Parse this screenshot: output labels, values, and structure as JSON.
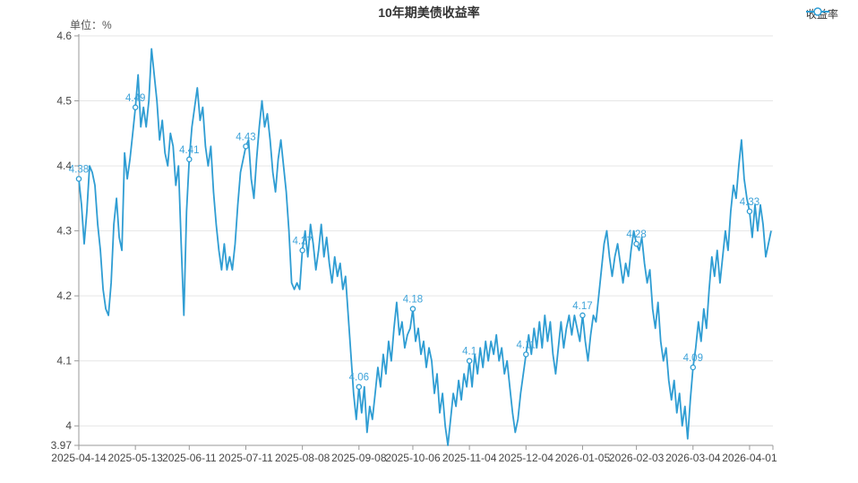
{
  "title": "10年期美债收益率",
  "unit_label": "单位：%",
  "legend": {
    "name": "收益率",
    "color": "#2f9dd3"
  },
  "colors": {
    "line": "#2f9dd3",
    "point_label": "#3fa3d9",
    "grid_line": "#e6e6e6",
    "axis_line": "#999999",
    "axis_text": "#464646",
    "background": "#ffffff"
  },
  "chart_data": {
    "type": "line",
    "title": "10年期美债收益率",
    "series_name": "收益率",
    "ylabel": "单位：%",
    "ylim": [
      3.97,
      4.6
    ],
    "grid": true,
    "legend_position": "top-right",
    "y_ticks": [
      3.97,
      4,
      4.1,
      4.2,
      4.3,
      4.4,
      4.5,
      4.6
    ],
    "y_tick_labels": [
      "3.97",
      "4",
      "4.1",
      "4.2",
      "4.3",
      "4.4",
      "4.5",
      "4.6"
    ],
    "x_tick_labels": [
      "2025-04-14",
      "2025-05-13",
      "2025-06-11",
      "2025-07-11",
      "2025-08-08",
      "2025-09-08",
      "2025-10-06",
      "2025-11-04",
      "2025-12-04",
      "2026-01-05",
      "2026-02-03",
      "2026-03-04",
      "2026-04-01"
    ],
    "x_tick_indices": [
      0,
      21,
      41,
      62,
      83,
      104,
      124,
      145,
      166,
      187,
      207,
      228,
      249
    ],
    "point_labels": [
      {
        "index": 0,
        "text": "4.38"
      },
      {
        "index": 21,
        "text": "4.49"
      },
      {
        "index": 41,
        "text": "4.41"
      },
      {
        "index": 62,
        "text": "4.43"
      },
      {
        "index": 83,
        "text": "4.27"
      },
      {
        "index": 104,
        "text": "4.06"
      },
      {
        "index": 124,
        "text": "4.18"
      },
      {
        "index": 145,
        "text": "4.1"
      },
      {
        "index": 166,
        "text": "4.11"
      },
      {
        "index": 187,
        "text": "4.17"
      },
      {
        "index": 207,
        "text": "4.28"
      },
      {
        "index": 228,
        "text": "4.09"
      },
      {
        "index": 249,
        "text": "4.33"
      }
    ],
    "values": [
      4.38,
      4.34,
      4.28,
      4.33,
      4.4,
      4.39,
      4.37,
      4.31,
      4.27,
      4.21,
      4.18,
      4.17,
      4.22,
      4.31,
      4.35,
      4.29,
      4.27,
      4.42,
      4.38,
      4.41,
      4.45,
      4.49,
      4.54,
      4.46,
      4.49,
      4.46,
      4.5,
      4.58,
      4.54,
      4.5,
      4.44,
      4.47,
      4.42,
      4.4,
      4.45,
      4.43,
      4.37,
      4.4,
      4.28,
      4.17,
      4.33,
      4.41,
      4.46,
      4.49,
      4.52,
      4.47,
      4.49,
      4.43,
      4.4,
      4.43,
      4.36,
      4.31,
      4.27,
      4.24,
      4.28,
      4.24,
      4.26,
      4.24,
      4.28,
      4.34,
      4.39,
      4.41,
      4.43,
      4.44,
      4.38,
      4.35,
      4.41,
      4.46,
      4.5,
      4.46,
      4.48,
      4.44,
      4.39,
      4.36,
      4.41,
      4.44,
      4.4,
      4.36,
      4.3,
      4.22,
      4.21,
      4.22,
      4.21,
      4.27,
      4.3,
      4.26,
      4.31,
      4.28,
      4.24,
      4.27,
      4.31,
      4.26,
      4.29,
      4.25,
      4.22,
      4.26,
      4.23,
      4.25,
      4.21,
      4.23,
      4.17,
      4.11,
      4.05,
      4.01,
      4.06,
      4.02,
      4.06,
      3.99,
      4.03,
      4.01,
      4.05,
      4.09,
      4.06,
      4.11,
      4.08,
      4.13,
      4.1,
      4.15,
      4.19,
      4.14,
      4.16,
      4.12,
      4.14,
      4.15,
      4.18,
      4.13,
      4.15,
      4.11,
      4.13,
      4.09,
      4.12,
      4.1,
      4.05,
      4.08,
      4.02,
      4.05,
      4.0,
      3.97,
      4.01,
      4.05,
      4.03,
      4.07,
      4.04,
      4.08,
      4.06,
      4.1,
      4.06,
      4.11,
      4.08,
      4.12,
      4.09,
      4.13,
      4.1,
      4.13,
      4.11,
      4.14,
      4.1,
      4.12,
      4.08,
      4.1,
      4.06,
      4.02,
      3.99,
      4.01,
      4.05,
      4.08,
      4.11,
      4.14,
      4.11,
      4.15,
      4.12,
      4.16,
      4.12,
      4.17,
      4.13,
      4.16,
      4.11,
      4.08,
      4.12,
      4.16,
      4.12,
      4.15,
      4.17,
      4.14,
      4.17,
      4.15,
      4.13,
      4.17,
      4.13,
      4.1,
      4.14,
      4.17,
      4.16,
      4.2,
      4.24,
      4.28,
      4.3,
      4.26,
      4.23,
      4.26,
      4.28,
      4.25,
      4.22,
      4.25,
      4.23,
      4.27,
      4.3,
      4.28,
      4.27,
      4.29,
      4.25,
      4.22,
      4.24,
      4.18,
      4.15,
      4.19,
      4.13,
      4.1,
      4.12,
      4.07,
      4.04,
      4.07,
      4.02,
      4.05,
      4.0,
      4.03,
      3.98,
      4.04,
      4.09,
      4.12,
      4.16,
      4.13,
      4.18,
      4.15,
      4.21,
      4.26,
      4.23,
      4.27,
      4.22,
      4.26,
      4.3,
      4.27,
      4.33,
      4.37,
      4.35,
      4.4,
      4.44,
      4.38,
      4.35,
      4.33,
      4.29,
      4.34,
      4.3,
      4.34,
      4.31,
      4.26,
      4.28,
      4.3
    ]
  }
}
